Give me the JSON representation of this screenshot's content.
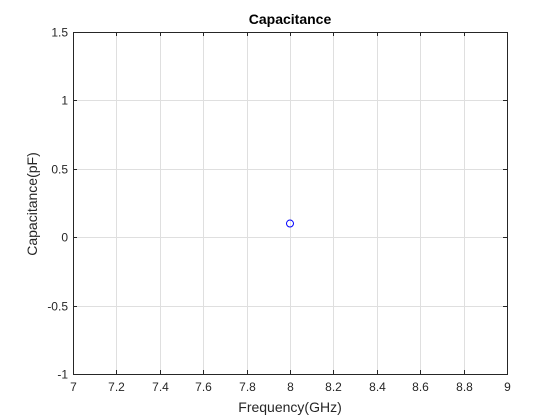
{
  "chart_data": {
    "type": "scatter",
    "title": "Capacitance",
    "xlabel": "Frequency(GHz)",
    "ylabel": "Capacitance(pF)",
    "xlim": [
      7,
      9
    ],
    "ylim": [
      -1,
      1.5
    ],
    "x_ticks": [
      "7",
      "7.2",
      "7.4",
      "7.6",
      "7.8",
      "8",
      "8.2",
      "8.4",
      "8.6",
      "8.8",
      "9"
    ],
    "y_ticks": [
      "-1",
      "-0.5",
      "0",
      "0.5",
      "1",
      "1.5"
    ],
    "grid": true,
    "marker": "circle",
    "series": [
      {
        "x": [
          8
        ],
        "y": [
          0.1
        ]
      }
    ],
    "colors": {
      "marker": "#0000ff",
      "grid": "#dfdfdf",
      "axis": "#262626"
    }
  }
}
